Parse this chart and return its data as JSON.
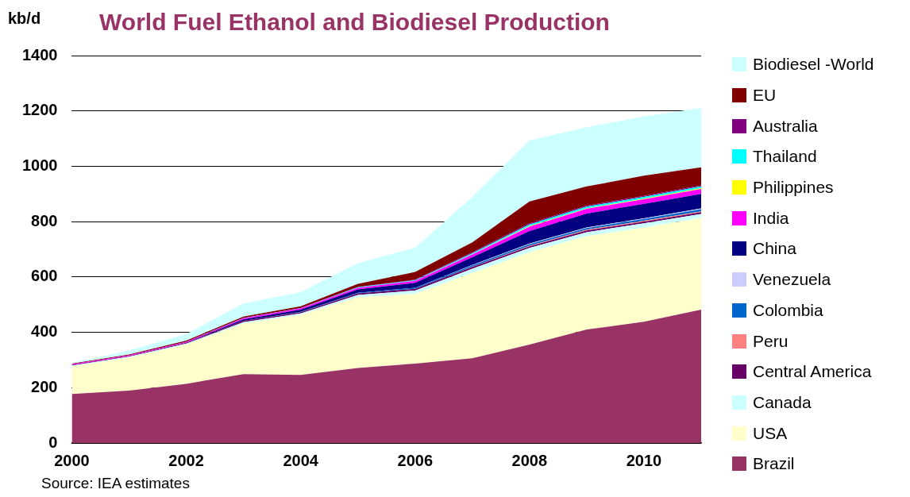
{
  "chart_data": {
    "type": "area",
    "title": "World Fuel Ethanol and Biodiesel Production",
    "ylabel": "kb/d",
    "stacked": true,
    "legend": "right",
    "grid": "y",
    "x": [
      2000,
      2001,
      2002,
      2003,
      2004,
      2005,
      2006,
      2007,
      2008,
      2009,
      2010,
      2011
    ],
    "xlim": [
      2000,
      2011
    ],
    "xticks": [
      2000,
      2002,
      2004,
      2006,
      2008,
      2010
    ],
    "ylim": [
      0,
      1400
    ],
    "yticks": [
      0,
      200,
      400,
      600,
      800,
      1000,
      1200,
      1400
    ],
    "annotations": [
      "Source: IEA estimates"
    ],
    "series": [
      {
        "name": "Brazil",
        "color": "#993366",
        "values": [
          177,
          189,
          214,
          249,
          246,
          271,
          287,
          306,
          356,
          410,
          438,
          482
        ]
      },
      {
        "name": "USA",
        "color": "#ffffcc",
        "values": [
          100,
          120,
          142,
          183,
          217,
          256,
          252,
          309,
          334,
          337,
          341,
          331
        ]
      },
      {
        "name": "Canada",
        "color": "#ccffff",
        "values": [
          3,
          3,
          3,
          5,
          5,
          8,
          12,
          15,
          15,
          15,
          15,
          15
        ]
      },
      {
        "name": "Central America",
        "color": "#660066",
        "values": [
          2,
          2,
          3,
          5,
          5,
          6,
          6,
          6,
          6,
          6,
          6,
          6
        ]
      },
      {
        "name": "Peru",
        "color": "#ff8080",
        "values": [
          0,
          0,
          0,
          0,
          0,
          0,
          0,
          1,
          2,
          3,
          3,
          3
        ]
      },
      {
        "name": "Colombia",
        "color": "#0066cc",
        "values": [
          0,
          0,
          0,
          0,
          1,
          2,
          4,
          5,
          6,
          6,
          7,
          8
        ]
      },
      {
        "name": "Venezuela",
        "color": "#ccccff",
        "values": [
          0,
          0,
          0,
          0,
          0,
          0,
          0,
          1,
          2,
          2,
          2,
          3
        ]
      },
      {
        "name": "China",
        "color": "#000080",
        "values": [
          0,
          0,
          1,
          5,
          8,
          12,
          18,
          28,
          45,
          50,
          52,
          52
        ]
      },
      {
        "name": "India",
        "color": "#ff00ff",
        "values": [
          3,
          3,
          3,
          4,
          5,
          6,
          7,
          10,
          16,
          17,
          17,
          18
        ]
      },
      {
        "name": "Philippines",
        "color": "#ffff00",
        "values": [
          0,
          0,
          0,
          0,
          0,
          0,
          0,
          1,
          2,
          2,
          2,
          3
        ]
      },
      {
        "name": "Thailand",
        "color": "#00ffff",
        "values": [
          0,
          0,
          0,
          1,
          1,
          2,
          2,
          4,
          6,
          6,
          6,
          6
        ]
      },
      {
        "name": "Australia",
        "color": "#800080",
        "values": [
          0,
          0,
          0,
          0,
          0,
          1,
          2,
          3,
          4,
          4,
          4,
          4
        ]
      },
      {
        "name": "EU",
        "color": "#800000",
        "values": [
          2,
          3,
          4,
          5,
          6,
          11,
          28,
          36,
          79,
          69,
          73,
          65
        ]
      },
      {
        "name": "Biodiesel -World",
        "color": "#ccffff",
        "values": [
          3,
          14,
          24,
          47,
          51,
          75,
          88,
          164,
          221,
          214,
          214,
          215
        ]
      }
    ]
  }
}
